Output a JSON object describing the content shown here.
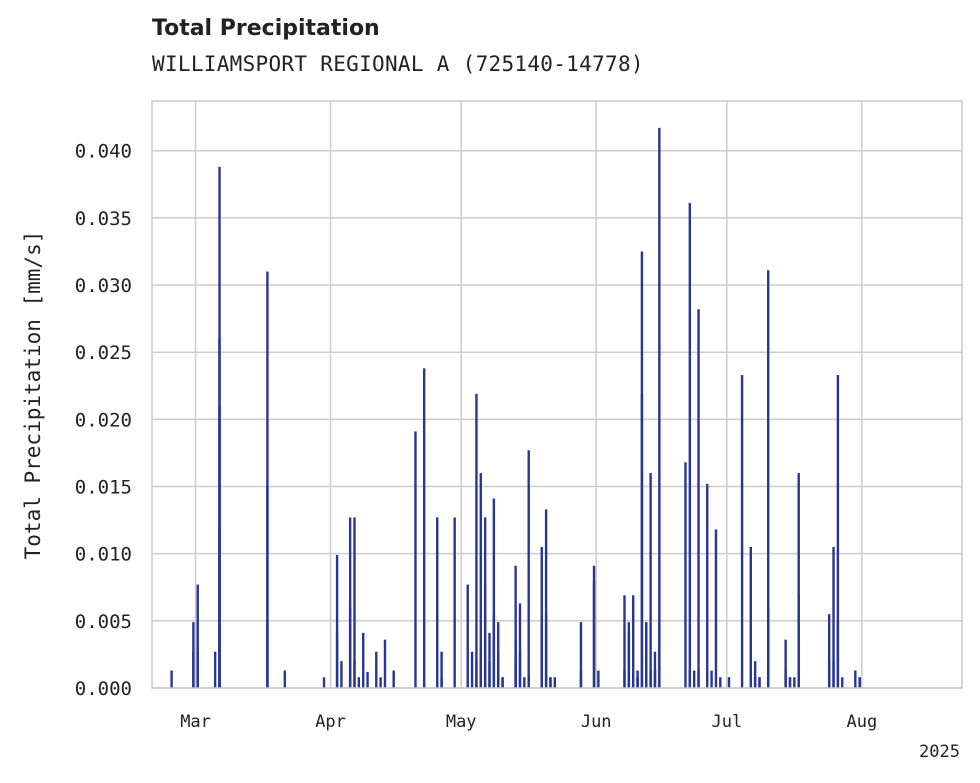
{
  "chart_data": {
    "type": "bar",
    "title": "Total Precipitation",
    "subtitle": "WILLIAMSPORT REGIONAL A (725140-14778)",
    "ylabel": "Total Precipitation [mm/s]",
    "xlabel": "",
    "year_label": "2025",
    "ylim": [
      0,
      0.0437
    ],
    "yticks": [
      "0.000",
      "0.005",
      "0.010",
      "0.015",
      "0.020",
      "0.025",
      "0.030",
      "0.035",
      "0.040"
    ],
    "xlim": [
      "2025-02-19",
      "2025-08-24"
    ],
    "xticks": [
      {
        "date": "2025-03-01",
        "label": "Mar"
      },
      {
        "date": "2025-04-01",
        "label": "Apr"
      },
      {
        "date": "2025-05-01",
        "label": "May"
      },
      {
        "date": "2025-06-01",
        "label": "Jun"
      },
      {
        "date": "2025-07-01",
        "label": "Jul"
      },
      {
        "date": "2025-08-01",
        "label": "Aug"
      }
    ],
    "grid": true,
    "bar_color": "#283593",
    "x": [
      "2025-02-23",
      "2025-02-28",
      "2025-02-28",
      "2025-03-01",
      "2025-03-01",
      "2025-03-05",
      "2025-03-06",
      "2025-03-06",
      "2025-03-06",
      "2025-03-06",
      "2025-03-17",
      "2025-03-17",
      "2025-03-17",
      "2025-03-21",
      "2025-03-30",
      "2025-04-02",
      "2025-04-02",
      "2025-04-03",
      "2025-04-05",
      "2025-04-05",
      "2025-04-06",
      "2025-04-06",
      "2025-04-07",
      "2025-04-08",
      "2025-04-09",
      "2025-04-11",
      "2025-04-12",
      "2025-04-13",
      "2025-04-15",
      "2025-04-20",
      "2025-04-22",
      "2025-04-25",
      "2025-04-26",
      "2025-04-26",
      "2025-04-29",
      "2025-05-02",
      "2025-05-03",
      "2025-05-04",
      "2025-05-04",
      "2025-05-05",
      "2025-05-05",
      "2025-05-06",
      "2025-05-06",
      "2025-05-07",
      "2025-05-07",
      "2025-05-08",
      "2025-05-08",
      "2025-05-09",
      "2025-05-09",
      "2025-05-10",
      "2025-05-10",
      "2025-05-13",
      "2025-05-13",
      "2025-05-13",
      "2025-05-14",
      "2025-05-14",
      "2025-05-15",
      "2025-05-16",
      "2025-05-16",
      "2025-05-19",
      "2025-05-19",
      "2025-05-20",
      "2025-05-20",
      "2025-05-21",
      "2025-05-21",
      "2025-05-22",
      "2025-05-28",
      "2025-05-28",
      "2025-05-31",
      "2025-05-31",
      "2025-06-01",
      "2025-06-07",
      "2025-06-07",
      "2025-06-08",
      "2025-06-08",
      "2025-06-09",
      "2025-06-10",
      "2025-06-10",
      "2025-06-10",
      "2025-06-11",
      "2025-06-11",
      "2025-06-12",
      "2025-06-12",
      "2025-06-13",
      "2025-06-13",
      "2025-06-14",
      "2025-06-14",
      "2025-06-15",
      "2025-06-15",
      "2025-06-21",
      "2025-06-22",
      "2025-06-22",
      "2025-06-23",
      "2025-06-24",
      "2025-06-24",
      "2025-06-26",
      "2025-06-27",
      "2025-06-28",
      "2025-06-29",
      "2025-07-01",
      "2025-07-04",
      "2025-07-06",
      "2025-07-07",
      "2025-07-07",
      "2025-07-08",
      "2025-07-08",
      "2025-07-10",
      "2025-07-10",
      "2025-07-14",
      "2025-07-14",
      "2025-07-15",
      "2025-07-15",
      "2025-07-16",
      "2025-07-17",
      "2025-07-17",
      "2025-07-24",
      "2025-07-24",
      "2025-07-25",
      "2025-07-25",
      "2025-07-26",
      "2025-07-26",
      "2025-07-27",
      "2025-07-30",
      "2025-07-31",
      "2025-07-31"
    ],
    "values": [
      0.0013,
      0.0027,
      0.0049,
      0.0077,
      0.003,
      0.0027,
      0.026,
      0.0388,
      0.021,
      0.012,
      0.005,
      0.031,
      0.015,
      0.0013,
      0.0008,
      0.0099,
      0.0041,
      0.002,
      0.0127,
      0.006,
      0.0127,
      0.002,
      0.0008,
      0.0041,
      0.0012,
      0.0027,
      0.0008,
      0.0036,
      0.0013,
      0.0191,
      0.0238,
      0.0127,
      0.0027,
      0.0008,
      0.0127,
      0.0077,
      0.0027,
      0.002,
      0.0219,
      0.0027,
      0.016,
      0.0127,
      0.0077,
      0.0041,
      0.002,
      0.0141,
      0.0055,
      0.0049,
      0.0027,
      0.0008,
      0.0008,
      0.0036,
      0.0091,
      0.002,
      0.0063,
      0.0027,
      0.0008,
      0.0177,
      0.0008,
      0.0055,
      0.0105,
      0.0133,
      0.0055,
      0.0008,
      0.0008,
      0.0008,
      0.0049,
      0.0013,
      0.0091,
      0.008,
      0.0013,
      0.0069,
      0.0013,
      0.0041,
      0.0049,
      0.0069,
      0.0008,
      0.0013,
      0.0008,
      0.0219,
      0.0325,
      0.0049,
      0.0049,
      0.0013,
      0.016,
      0.0027,
      0.0013,
      0.0417,
      0.0049,
      0.0168,
      0.0361,
      0.0013,
      0.0013,
      0.0282,
      0.0013,
      0.0152,
      0.0013,
      0.0118,
      0.0008,
      0.0008,
      0.0233,
      0.0105,
      0.002,
      0.0008,
      0.0008,
      0.0008,
      0.0311,
      0.006,
      0.0013,
      0.0036,
      0.0008,
      0.0008,
      0.0008,
      0.016,
      0.007,
      0.002,
      0.0055,
      0.0105,
      0.002,
      0.0233,
      0.005,
      0.0008,
      0.0013,
      0.0008,
      0.0008
    ]
  }
}
